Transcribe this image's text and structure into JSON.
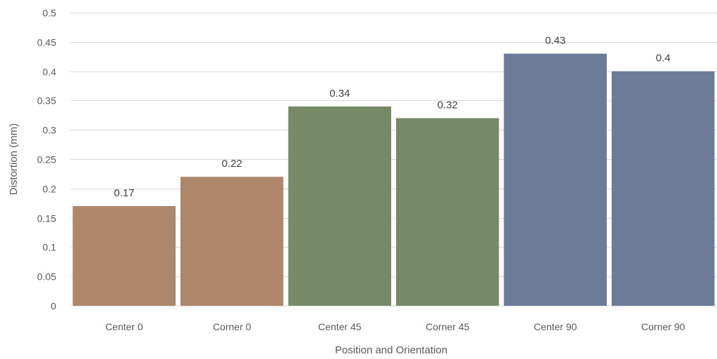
{
  "chart_data": {
    "type": "bar",
    "title": "",
    "xlabel": "Position and Orientation",
    "ylabel": "Distortion (mm)",
    "categories": [
      "Center 0",
      "Corner 0",
      "Center 45",
      "Corner 45",
      "Center 90",
      "Corner 90"
    ],
    "values": [
      0.17,
      0.22,
      0.34,
      0.32,
      0.43,
      0.4
    ],
    "data_labels": [
      "0.17",
      "0.22",
      "0.34",
      "0.32",
      "0.43",
      "0.4"
    ],
    "bar_colors": [
      "#ae876b",
      "#ae876b",
      "#778a68",
      "#778a68",
      "#6c7c98",
      "#6c7c98"
    ],
    "ylim": [
      0,
      0.5
    ],
    "y_ticks": [
      0,
      0.05,
      0.1,
      0.15,
      0.2,
      0.25,
      0.3,
      0.35,
      0.4,
      0.45,
      0.5
    ],
    "y_tick_labels": [
      "0",
      "0.05",
      "0.1",
      "0.15",
      "0.2",
      "0.25",
      "0.3",
      "0.35",
      "0.4",
      "0.45",
      "0.5"
    ],
    "grid": true,
    "grid_color": "#d9d9d9",
    "legend": "none"
  }
}
